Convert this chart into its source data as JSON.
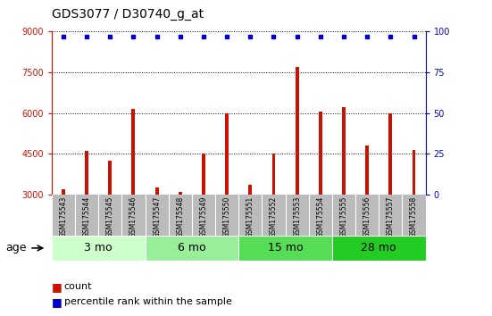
{
  "title": "GDS3077 / D30740_g_at",
  "samples": [
    "GSM175543",
    "GSM175544",
    "GSM175545",
    "GSM175546",
    "GSM175547",
    "GSM175548",
    "GSM175549",
    "GSM175550",
    "GSM175551",
    "GSM175552",
    "GSM175553",
    "GSM175554",
    "GSM175555",
    "GSM175556",
    "GSM175557",
    "GSM175558"
  ],
  "counts": [
    3200,
    4600,
    4250,
    6150,
    3250,
    3100,
    4500,
    6000,
    3350,
    4500,
    7700,
    6050,
    6200,
    4800,
    6000,
    4650
  ],
  "percentile": [
    97,
    97,
    97,
    97,
    97,
    97,
    97,
    97,
    97,
    97,
    97,
    97,
    97,
    97,
    97,
    97
  ],
  "ylim_left": [
    3000,
    9000
  ],
  "ylim_right": [
    0,
    100
  ],
  "yticks_left": [
    3000,
    4500,
    6000,
    7500,
    9000
  ],
  "yticks_right": [
    0,
    25,
    50,
    75,
    100
  ],
  "bar_color": "#cc1100",
  "dot_color": "#0000cc",
  "groups": [
    {
      "label": "3 mo",
      "start": 0,
      "end": 3,
      "color": "#ccffcc"
    },
    {
      "label": "6 mo",
      "start": 4,
      "end": 7,
      "color": "#99ee99"
    },
    {
      "label": "15 mo",
      "start": 8,
      "end": 11,
      "color": "#55dd55"
    },
    {
      "label": "28 mo",
      "start": 12,
      "end": 15,
      "color": "#22cc22"
    }
  ],
  "age_label": "age",
  "legend_count_label": "count",
  "legend_pct_label": "percentile rank within the sample",
  "sample_bg_color": "#bbbbbb",
  "grid_color": "#000000",
  "title_fontsize": 10,
  "axis_fontsize": 7,
  "sample_fontsize": 5.5,
  "age_fontsize": 9,
  "legend_fontsize": 8
}
